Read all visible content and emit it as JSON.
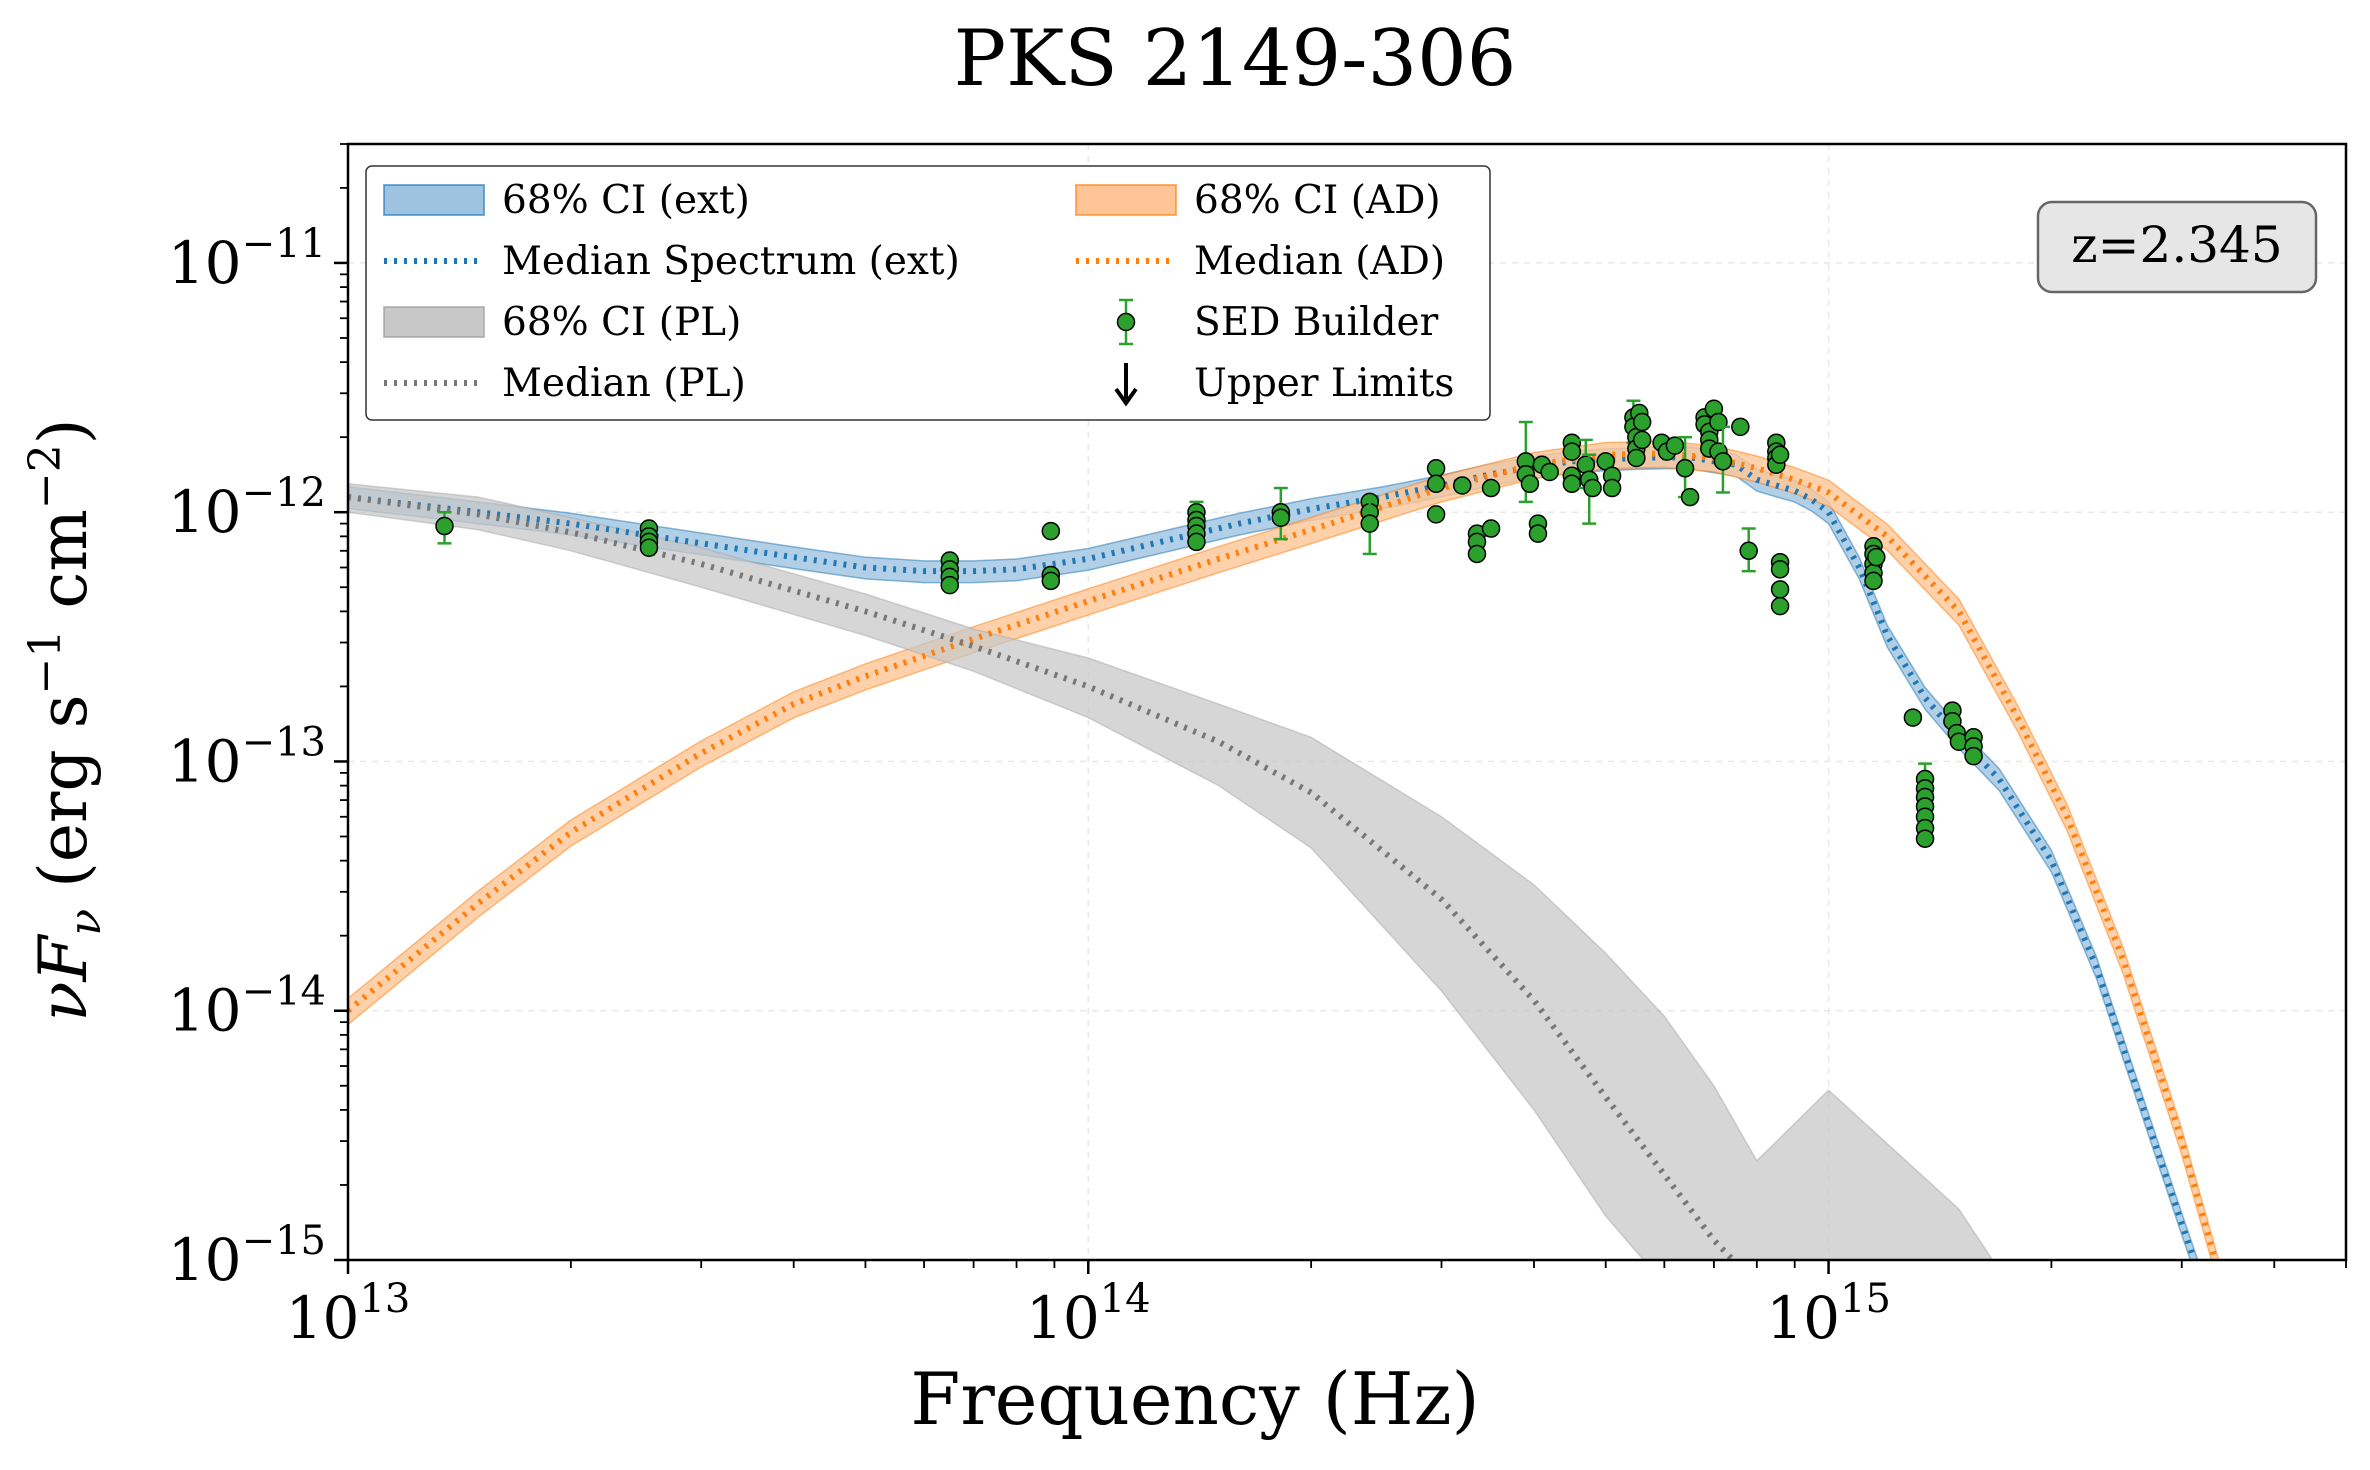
{
  "chart_data": {
    "type": "line",
    "title": "PKS 2149-306",
    "xlabel": "Frequency (Hz)",
    "ylabel": "νF_ν (erg s⁻¹ cm⁻²)",
    "xscale": "log",
    "yscale": "log",
    "xlim": [
      10000000000000.0,
      5000000000000000.0
    ],
    "ylim": [
      1e-15,
      3e-11
    ],
    "grid": true,
    "legend_location": "top-left",
    "annotation": "z=2.345",
    "colors": {
      "ext": "#1f77b4",
      "ext_fill": "#9ec3e0",
      "ad": "#ff7f0e",
      "ad_fill": "#ffc596",
      "pl": "#777777",
      "pl_fill": "#c8c8c8",
      "points": "#2ca02c",
      "axis": "#000000"
    },
    "x_ticks": [
      {
        "value": 10000000000000.0,
        "base": "10",
        "exp": "13"
      },
      {
        "value": 100000000000000.0,
        "base": "10",
        "exp": "14"
      },
      {
        "value": 1000000000000000.0,
        "base": "10",
        "exp": "15"
      }
    ],
    "y_ticks": [
      {
        "value": 1e-15,
        "base": "10",
        "exp": "−15"
      },
      {
        "value": 1e-14,
        "base": "10",
        "exp": "−14"
      },
      {
        "value": 1e-13,
        "base": "10",
        "exp": "−13"
      },
      {
        "value": 1e-12,
        "base": "10",
        "exp": "−12"
      },
      {
        "value": 1e-11,
        "base": "10",
        "exp": "−11"
      }
    ],
    "legend": [
      {
        "label": "68% CI (ext)",
        "kind": "band",
        "series": "ext"
      },
      {
        "label": "Median Spectrum (ext)",
        "kind": "dotted",
        "series": "ext"
      },
      {
        "label": "68% CI (PL)",
        "kind": "band",
        "series": "pl"
      },
      {
        "label": "Median (PL)",
        "kind": "dotted",
        "series": "pl"
      },
      {
        "label": "68% CI (AD)",
        "kind": "band",
        "series": "ad"
      },
      {
        "label": "Median (AD)",
        "kind": "dotted",
        "series": "ad"
      },
      {
        "label": "SED Builder",
        "kind": "point",
        "series": "points"
      },
      {
        "label": "Upper Limits",
        "kind": "arrow",
        "series": "axis"
      }
    ],
    "series": [
      {
        "name": "Median Spectrum (ext)",
        "x": [
          10000000000000.0,
          15000000000000.0,
          20000000000000.0,
          30000000000000.0,
          40000000000000.0,
          50000000000000.0,
          60000000000000.0,
          70000000000000.0,
          80000000000000.0,
          100000000000000.0,
          130000000000000.0,
          160000000000000.0,
          200000000000000.0,
          250000000000000.0,
          300000000000000.0,
          350000000000000.0,
          400000000000000.0,
          450000000000000.0,
          500000000000000.0,
          550000000000000.0,
          600000000000000.0,
          650000000000000.0,
          700000000000000.0,
          750000000000000.0,
          800000000000000.0,
          850000000000000.0,
          900000000000000.0,
          950000000000000.0,
          1000000000000000.0,
          1100000000000000.0,
          1200000000000000.0,
          1350000000000000.0,
          1500000000000000.0,
          1700000000000000.0,
          2000000000000000.0,
          2300000000000000.0,
          2600000000000000.0,
          3000000000000000.0,
          3200000000000000.0
        ],
        "y": [
          1.15e-12,
          1e-12,
          9e-13,
          7.5e-13,
          6.6e-13,
          6e-13,
          5.8e-13,
          5.8e-13,
          5.9e-13,
          6.5e-13,
          7.8e-13,
          9e-13,
          1.03e-12,
          1.15e-12,
          1.28e-12,
          1.42e-12,
          1.52e-12,
          1.6e-12,
          1.63e-12,
          1.65e-12,
          1.66e-12,
          1.66e-12,
          1.6e-12,
          1.55e-12,
          1.35e-12,
          1.28e-12,
          1.22e-12,
          1.12e-12,
          1e-12,
          6e-13,
          3.2e-13,
          1.8e-13,
          1.25e-13,
          8.5e-14,
          4e-14,
          1.5e-14,
          5e-15,
          1.4e-15,
          8e-16
        ],
        "band_frac": 0.1
      },
      {
        "name": "Median (AD)",
        "x": [
          10000000000000.0,
          15000000000000.0,
          20000000000000.0,
          30000000000000.0,
          40000000000000.0,
          50000000000000.0,
          70000000000000.0,
          100000000000000.0,
          150000000000000.0,
          200000000000000.0,
          300000000000000.0,
          400000000000000.0,
          500000000000000.0,
          600000000000000.0,
          700000000000000.0,
          800000000000000.0,
          900000000000000.0,
          1000000000000000.0,
          1200000000000000.0,
          1500000000000000.0,
          1800000000000000.0,
          2100000000000000.0,
          2500000000000000.0,
          3000000000000000.0,
          3400000000000000.0
        ],
        "y": [
          1e-14,
          2.7e-14,
          5.2e-14,
          1.08e-13,
          1.7e-13,
          2.2e-13,
          3.1e-13,
          4.4e-13,
          6.5e-13,
          8.5e-13,
          1.25e-12,
          1.55e-12,
          1.7e-12,
          1.72e-12,
          1.65e-12,
          1.5e-12,
          1.35e-12,
          1.2e-12,
          8e-13,
          4e-13,
          1.5e-13,
          6e-14,
          1.6e-14,
          3e-15,
          8e-16
        ],
        "band_frac": 0.12
      },
      {
        "name": "Median (PL)",
        "x": [
          10000000000000.0,
          15000000000000.0,
          20000000000000.0,
          30000000000000.0,
          50000000000000.0,
          70000000000000.0,
          100000000000000.0,
          150000000000000.0,
          200000000000000.0,
          300000000000000.0,
          400000000000000.0,
          500000000000000.0,
          600000000000000.0,
          700000000000000.0,
          800000000000000.0
        ],
        "y": [
          1.15e-12,
          9.8e-13,
          8.3e-13,
          6.2e-13,
          4e-13,
          2.9e-13,
          2e-13,
          1.2e-13,
          7.5e-14,
          2.8e-14,
          1.1e-14,
          4.5e-15,
          2.2e-15,
          1.2e-15,
          8e-16
        ],
        "band_lo": [
          1e-12,
          8.5e-13,
          7e-13,
          5e-13,
          3.2e-13,
          2.3e-13,
          1.5e-13,
          8e-14,
          4.5e-14,
          1.2e-14,
          4e-15,
          1.5e-15,
          8e-16,
          6e-16,
          5e-16
        ],
        "band_hi": [
          1.3e-12,
          1.15e-12,
          9.5e-13,
          7.2e-13,
          4.7e-13,
          3.4e-13,
          2.6e-13,
          1.7e-13,
          1.25e-13,
          6e-14,
          3.2e-14,
          1.7e-14,
          9.5e-15,
          5e-15,
          2.5e-15
        ],
        "band_hi_x_extra": [
          [
            1000000000000000.0,
            4.8e-15
          ],
          [
            1500000000000000.0,
            1.6e-15
          ],
          [
            1750000000000000.0,
            8e-16
          ]
        ]
      }
    ],
    "points": [
      {
        "x": 13500000000000.0,
        "y": 8.8e-13,
        "err": [
          7.5e-13,
          1e-12
        ]
      },
      {
        "x": 25500000000000.0,
        "y": 8.6e-13
      },
      {
        "x": 25500000000000.0,
        "y": 8e-13
      },
      {
        "x": 25500000000000.0,
        "y": 7.6e-13
      },
      {
        "x": 25500000000000.0,
        "y": 7.2e-13
      },
      {
        "x": 65000000000000.0,
        "y": 6.4e-13
      },
      {
        "x": 65000000000000.0,
        "y": 5.9e-13
      },
      {
        "x": 65000000000000.0,
        "y": 5.5e-13
      },
      {
        "x": 65000000000000.0,
        "y": 5.1e-13
      },
      {
        "x": 89000000000000.0,
        "y": 8.4e-13
      },
      {
        "x": 89000000000000.0,
        "y": 5.6e-13
      },
      {
        "x": 89000000000000.0,
        "y": 5.3e-13
      },
      {
        "x": 140000000000000.0,
        "y": 1e-12,
        "err": [
          8.8e-13,
          1.1e-12
        ]
      },
      {
        "x": 140000000000000.0,
        "y": 9.3e-13
      },
      {
        "x": 140000000000000.0,
        "y": 8.8e-13
      },
      {
        "x": 140000000000000.0,
        "y": 8.2e-13
      },
      {
        "x": 140000000000000.0,
        "y": 7.6e-13
      },
      {
        "x": 182000000000000.0,
        "y": 1e-12,
        "err": [
          7.8e-13,
          1.25e-12
        ]
      },
      {
        "x": 182000000000000.0,
        "y": 9.5e-13
      },
      {
        "x": 240000000000000.0,
        "y": 1.1e-12
      },
      {
        "x": 240000000000000.0,
        "y": 1e-12
      },
      {
        "x": 240000000000000.0,
        "y": 9e-13,
        "err": [
          6.8e-13,
          1.1e-12
        ]
      },
      {
        "x": 295000000000000.0,
        "y": 1.5e-12
      },
      {
        "x": 295000000000000.0,
        "y": 1.3e-12
      },
      {
        "x": 295000000000000.0,
        "y": 9.8e-13
      },
      {
        "x": 320000000000000.0,
        "y": 1.28e-12
      },
      {
        "x": 335000000000000.0,
        "y": 8.2e-13
      },
      {
        "x": 335000000000000.0,
        "y": 7.6e-13
      },
      {
        "x": 335000000000000.0,
        "y": 6.8e-13
      },
      {
        "x": 350000000000000.0,
        "y": 8.6e-13
      },
      {
        "x": 350000000000000.0,
        "y": 1.25e-12
      },
      {
        "x": 390000000000000.0,
        "y": 1.6e-12,
        "err": [
          1.1e-12,
          2.3e-12
        ]
      },
      {
        "x": 390000000000000.0,
        "y": 1.42e-12
      },
      {
        "x": 395000000000000.0,
        "y": 1.3e-12
      },
      {
        "x": 405000000000000.0,
        "y": 9e-13
      },
      {
        "x": 405000000000000.0,
        "y": 8.2e-13
      },
      {
        "x": 410000000000000.0,
        "y": 1.55e-12
      },
      {
        "x": 420000000000000.0,
        "y": 1.45e-12
      },
      {
        "x": 450000000000000.0,
        "y": 1.9e-12
      },
      {
        "x": 450000000000000.0,
        "y": 1.75e-12
      },
      {
        "x": 450000000000000.0,
        "y": 1.4e-12
      },
      {
        "x": 450000000000000.0,
        "y": 1.3e-12
      },
      {
        "x": 470000000000000.0,
        "y": 1.55e-12,
        "err": [
          1.25e-12,
          1.95e-12
        ]
      },
      {
        "x": 475000000000000.0,
        "y": 1.35e-12,
        "err": [
          9e-13,
          1.7e-12
        ]
      },
      {
        "x": 480000000000000.0,
        "y": 1.25e-12
      },
      {
        "x": 500000000000000.0,
        "y": 1.6e-12
      },
      {
        "x": 510000000000000.0,
        "y": 1.4e-12
      },
      {
        "x": 510000000000000.0,
        "y": 1.25e-12
      },
      {
        "x": 545000000000000.0,
        "y": 2.4e-12,
        "err": [
          1.9e-12,
          2.8e-12
        ]
      },
      {
        "x": 545000000000000.0,
        "y": 2.2e-12
      },
      {
        "x": 550000000000000.0,
        "y": 2e-12
      },
      {
        "x": 550000000000000.0,
        "y": 1.8e-12
      },
      {
        "x": 550000000000000.0,
        "y": 1.65e-12
      },
      {
        "x": 555000000000000.0,
        "y": 2.5e-12
      },
      {
        "x": 560000000000000.0,
        "y": 2.3e-12
      },
      {
        "x": 560000000000000.0,
        "y": 1.95e-12
      },
      {
        "x": 595000000000000.0,
        "y": 1.9e-12
      },
      {
        "x": 605000000000000.0,
        "y": 1.75e-12
      },
      {
        "x": 620000000000000.0,
        "y": 1.85e-12
      },
      {
        "x": 640000000000000.0,
        "y": 1.5e-12,
        "err": [
          1.15e-12,
          2e-12
        ]
      },
      {
        "x": 650000000000000.0,
        "y": 1.15e-12
      },
      {
        "x": 680000000000000.0,
        "y": 2.4e-12
      },
      {
        "x": 680000000000000.0,
        "y": 2.25e-12
      },
      {
        "x": 690000000000000.0,
        "y": 2.1e-12
      },
      {
        "x": 690000000000000.0,
        "y": 1.95e-12
      },
      {
        "x": 690000000000000.0,
        "y": 1.8e-12
      },
      {
        "x": 700000000000000.0,
        "y": 2.6e-12
      },
      {
        "x": 710000000000000.0,
        "y": 2.3e-12
      },
      {
        "x": 710000000000000.0,
        "y": 1.75e-12
      },
      {
        "x": 720000000000000.0,
        "y": 1.6e-12,
        "err": [
          1.2e-12,
          2.2e-12
        ]
      },
      {
        "x": 760000000000000.0,
        "y": 2.2e-12
      },
      {
        "x": 780000000000000.0,
        "y": 7e-13,
        "err": [
          5.8e-13,
          8.6e-13
        ]
      },
      {
        "x": 850000000000000.0,
        "y": 1.9e-12
      },
      {
        "x": 850000000000000.0,
        "y": 1.75e-12
      },
      {
        "x": 850000000000000.0,
        "y": 1.65e-12
      },
      {
        "x": 850000000000000.0,
        "y": 1.55e-12
      },
      {
        "x": 860000000000000.0,
        "y": 1.7e-12
      },
      {
        "x": 860000000000000.0,
        "y": 6.3e-13
      },
      {
        "x": 860000000000000.0,
        "y": 4.9e-13
      },
      {
        "x": 860000000000000.0,
        "y": 4.2e-13
      },
      {
        "x": 860000000000000.0,
        "y": 5.9e-13
      },
      {
        "x": 1150000000000000.0,
        "y": 7.3e-13
      },
      {
        "x": 1150000000000000.0,
        "y": 6.8e-13
      },
      {
        "x": 1150000000000000.0,
        "y": 6.2e-13
      },
      {
        "x": 1150000000000000.0,
        "y": 5.7e-13
      },
      {
        "x": 1150000000000000.0,
        "y": 5.3e-13
      },
      {
        "x": 1160000000000000.0,
        "y": 6.6e-13
      },
      {
        "x": 1300000000000000.0,
        "y": 1.5e-13
      },
      {
        "x": 1350000000000000.0,
        "y": 8.5e-14,
        "err": [
          7.5e-14,
          9.8e-14
        ]
      },
      {
        "x": 1350000000000000.0,
        "y": 7.8e-14
      },
      {
        "x": 1350000000000000.0,
        "y": 7.2e-14
      },
      {
        "x": 1350000000000000.0,
        "y": 6.6e-14
      },
      {
        "x": 1350000000000000.0,
        "y": 6e-14
      },
      {
        "x": 1350000000000000.0,
        "y": 5.4e-14
      },
      {
        "x": 1350000000000000.0,
        "y": 4.9e-14
      },
      {
        "x": 1470000000000000.0,
        "y": 1.6e-13
      },
      {
        "x": 1470000000000000.0,
        "y": 1.45e-13
      },
      {
        "x": 1490000000000000.0,
        "y": 1.3e-13
      },
      {
        "x": 1500000000000000.0,
        "y": 1.2e-13
      },
      {
        "x": 1570000000000000.0,
        "y": 1.25e-13
      },
      {
        "x": 1570000000000000.0,
        "y": 1.15e-13
      },
      {
        "x": 1570000000000000.0,
        "y": 1.05e-13
      }
    ]
  }
}
